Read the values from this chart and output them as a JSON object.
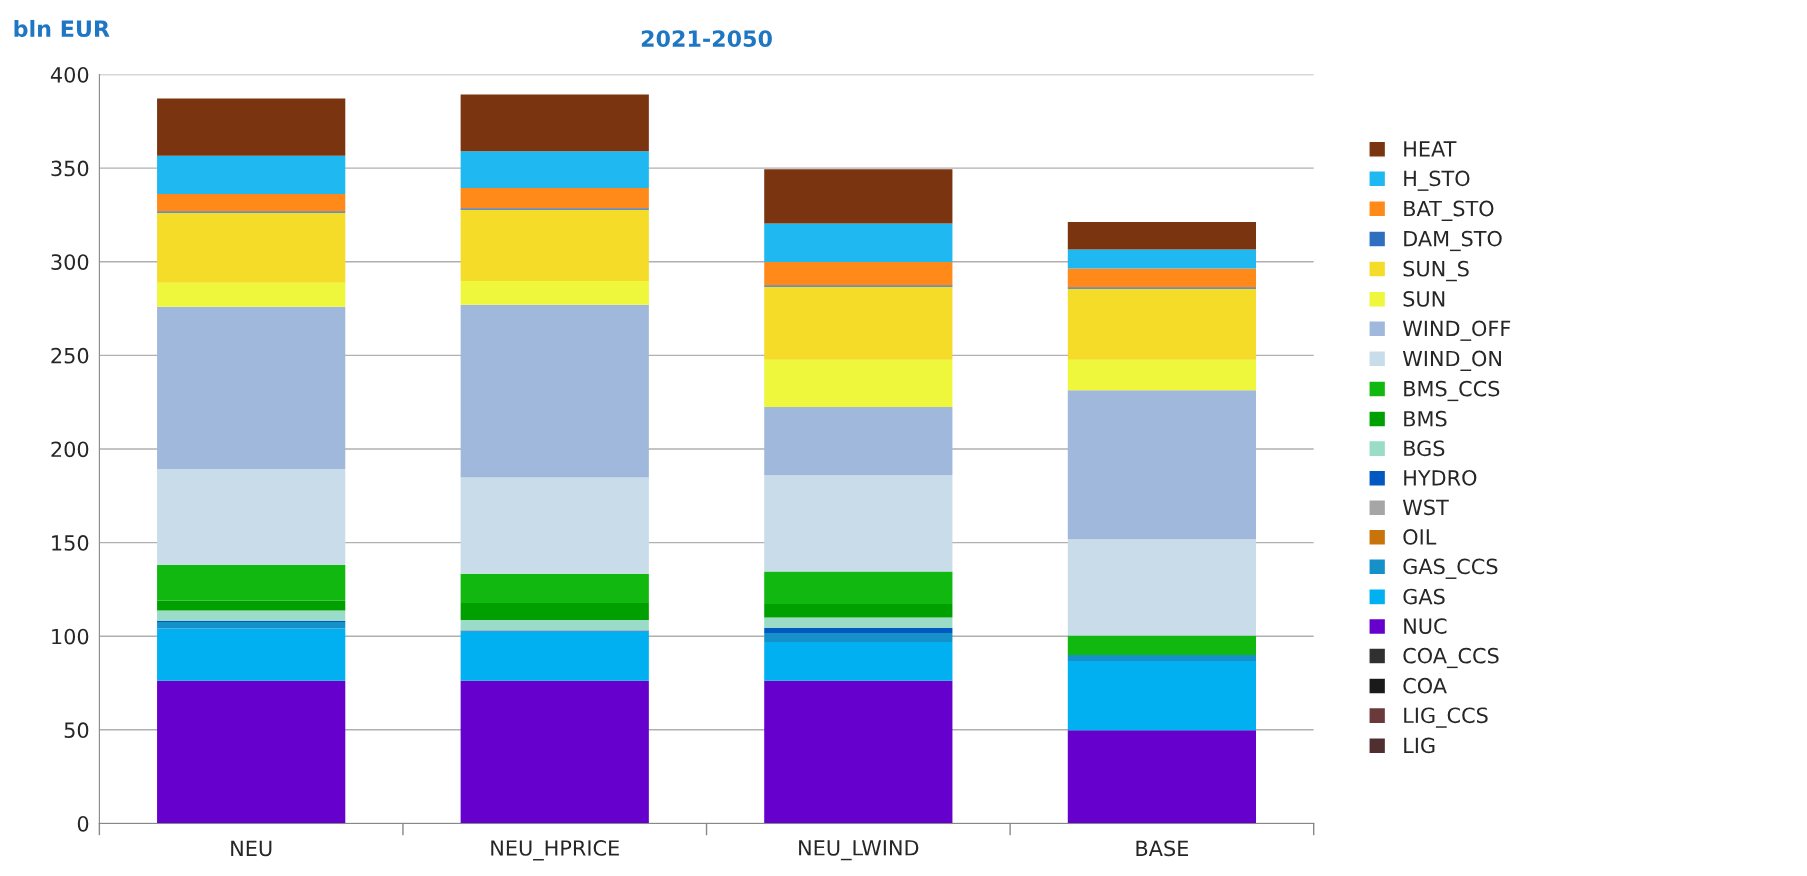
{
  "chart_data": {
    "type": "bar",
    "stacked": true,
    "title": "2021-2050",
    "ylabel": "bln EUR",
    "categories": [
      "NEU",
      "NEU_HPRICE",
      "NEU_LWIND",
      "BASE"
    ],
    "ylim": [
      0,
      400
    ],
    "yticks": [
      0,
      50,
      100,
      150,
      200,
      250,
      300,
      350,
      400
    ],
    "grid": "y",
    "legend": "right",
    "series": [
      {
        "name": "LIG",
        "color": "#4f2f2f",
        "values": [
          0,
          0,
          0,
          0
        ]
      },
      {
        "name": "LIG_CCS",
        "color": "#6a3a3a",
        "values": [
          0,
          0,
          0,
          0
        ]
      },
      {
        "name": "COA",
        "color": "#1a1a1a",
        "values": [
          0,
          0,
          0,
          0
        ]
      },
      {
        "name": "COA_CCS",
        "color": "#303030",
        "values": [
          0,
          0,
          0,
          0
        ]
      },
      {
        "name": "NUC",
        "color": "#6600cc",
        "values": [
          76.2,
          76.2,
          76.2,
          49.8
        ]
      },
      {
        "name": "GAS",
        "color": "#00b0f0",
        "values": [
          27.9,
          26.3,
          20.7,
          37.0
        ]
      },
      {
        "name": "GAS_CCS",
        "color": "#1590c8",
        "values": [
          3.5,
          0,
          4.8,
          3.2
        ]
      },
      {
        "name": "OIL",
        "color": "#c8740a",
        "values": [
          0,
          0,
          0,
          0
        ]
      },
      {
        "name": "WST",
        "color": "#a6a6a6",
        "values": [
          0,
          0,
          0,
          0
        ]
      },
      {
        "name": "HYDRO",
        "color": "#0059c0",
        "values": [
          0.5,
          0.6,
          2.7,
          0
        ]
      },
      {
        "name": "BGS",
        "color": "#9adcc8",
        "values": [
          5.6,
          5.6,
          5.6,
          0
        ]
      },
      {
        "name": "BMS",
        "color": "#00a000",
        "values": [
          5.3,
          9.0,
          7.2,
          0
        ]
      },
      {
        "name": "BMS_CCS",
        "color": "#10b810",
        "values": [
          19.2,
          15.7,
          17.3,
          10.4
        ]
      },
      {
        "name": "WIND_ON",
        "color": "#c9dcea",
        "values": [
          51.1,
          51.4,
          51.4,
          51.4
        ]
      },
      {
        "name": "WIND_OFF",
        "color": "#a0b8dc",
        "values": [
          86.6,
          92.2,
          36.5,
          79.6
        ]
      },
      {
        "name": "SUN",
        "color": "#eef73c",
        "values": [
          12.8,
          12.7,
          25.3,
          16.3
        ]
      },
      {
        "name": "SUN_S",
        "color": "#f4dc28",
        "values": [
          37.5,
          38.1,
          38.9,
          37.8
        ]
      },
      {
        "name": "DAM_STO",
        "color": "#2f6fc0",
        "values": [
          0.8,
          0.8,
          0.8,
          0.8
        ]
      },
      {
        "name": "BAT_STO",
        "color": "#ff8a1a",
        "values": [
          9.1,
          10.7,
          12.5,
          10.1
        ]
      },
      {
        "name": "H_STO",
        "color": "#1fb8f0",
        "values": [
          20.5,
          19.7,
          20.5,
          10.1
        ]
      },
      {
        "name": "HEAT",
        "color": "#7a3510",
        "values": [
          30.6,
          30.3,
          29.0,
          14.7
        ]
      }
    ]
  }
}
